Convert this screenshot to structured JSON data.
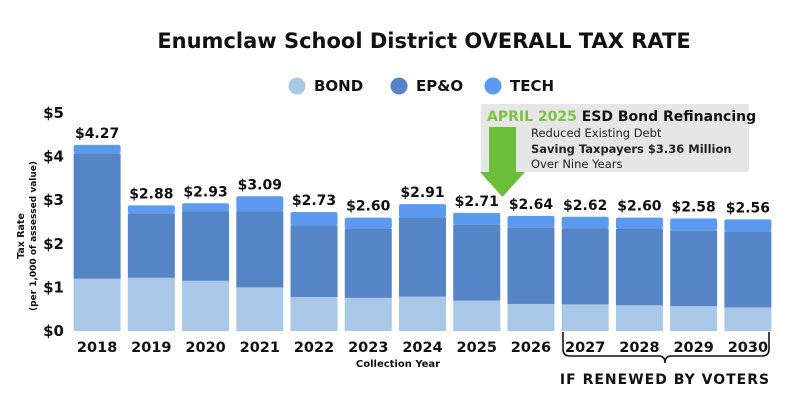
{
  "colors": {
    "bond": "#a9c8e8",
    "epo": "#5585c6",
    "tech": "#5b9aef",
    "callout_bg": "#e6e6e6",
    "callout_title_year": "#7cc242",
    "arrow": "#6cbd3a"
  },
  "chart_data": {
    "type": "bar",
    "stacked": true,
    "title": "Enumclaw School District OVERALL TAX RATE",
    "xlabel": "Collection Year",
    "ylabel": "Tax Rate",
    "ylabel_sub": "(per 1,000 of assessed value)",
    "ylim": [
      0,
      5
    ],
    "yticks": [
      "$0",
      "$1",
      "$2",
      "$3",
      "$4",
      "$5"
    ],
    "yticks_values": [
      0,
      1,
      2,
      3,
      4,
      5
    ],
    "grid": false,
    "legend_position": "top",
    "categories": [
      "2018",
      "2019",
      "2020",
      "2021",
      "2022",
      "2023",
      "2024",
      "2025",
      "2026",
      "2027",
      "2028",
      "2029",
      "2030"
    ],
    "totals_labels": [
      "$4.27",
      "$2.88",
      "$2.93",
      "$3.09",
      "$2.73",
      "$2.60",
      "$2.91",
      "$2.71",
      "$2.64",
      "$2.62",
      "$2.60",
      "$2.58",
      "$2.56"
    ],
    "totals": [
      4.27,
      2.88,
      2.93,
      3.09,
      2.73,
      2.6,
      2.91,
      2.71,
      2.64,
      2.62,
      2.6,
      2.58,
      2.56
    ],
    "series": [
      {
        "name": "BOND",
        "color_key": "bond",
        "values": [
          1.2,
          1.22,
          1.15,
          1.0,
          0.78,
          0.76,
          0.79,
          0.7,
          0.62,
          0.61,
          0.59,
          0.57,
          0.54
        ]
      },
      {
        "name": "EP&O",
        "color_key": "epo",
        "values": [
          2.87,
          1.48,
          1.6,
          1.75,
          1.64,
          1.58,
          1.82,
          1.74,
          1.76,
          1.74,
          1.75,
          1.74,
          1.74
        ]
      },
      {
        "name": "TECH",
        "color_key": "tech",
        "values": [
          0.2,
          0.18,
          0.18,
          0.34,
          0.31,
          0.26,
          0.3,
          0.27,
          0.26,
          0.27,
          0.26,
          0.27,
          0.28
        ]
      }
    ]
  },
  "callout": {
    "title_year": "APRIL 2025",
    "title_rest": " ESD Bond Refinancing",
    "line1": "Reduced Existing Debt",
    "line2": "Saving Taxpayers $3.36 Million",
    "line3": "Over Nine Years"
  },
  "renewal_note": "IF RENEWED BY VOTERS"
}
